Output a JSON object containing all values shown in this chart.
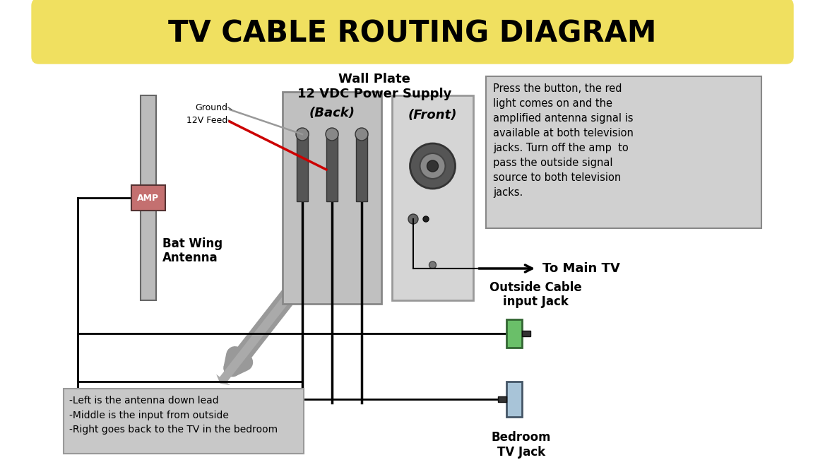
{
  "title": "TV CABLE ROUTING DIAGRAM",
  "title_bg_color": "#F0E060",
  "bg_color": "#ffffff",
  "wall_plate_label": "Wall Plate\n12 VDC Power Supply",
  "back_label": "(Back)",
  "front_label": "(Front)",
  "amp_label": "AMP",
  "bat_wing_label": "Bat Wing\nAntenna",
  "to_main_tv_label": "To Main TV",
  "outside_cable_label": "Outside Cable\ninput Jack",
  "bedroom_tv_label": "Bedroom\nTV Jack",
  "ground_label": "Ground",
  "feed_label": "12V Feed",
  "info_box_text": "Press the button, the red\nlight comes on and the\namplified antenna signal is\navailable at both television\njacks. Turn off the amp  to\npass the outside signal\nsource to both television\njacks.",
  "bottom_box_text": "-Left is the antenna down lead\n-Middle is the input from outside\n-Right goes back to the TV in the bedroom",
  "amp_color": "#c47070",
  "outside_jack_color": "#6abf69",
  "bedroom_jack_color": "#a8c4d8",
  "line_color": "#000000",
  "red_line_color": "#cc0000",
  "gray_line_color": "#999999",
  "back_plate_bg": "#c0c0c0",
  "front_plate_bg": "#d5d5d5",
  "info_box_bg": "#d0d0d0",
  "bottom_box_bg": "#c8c8c8"
}
